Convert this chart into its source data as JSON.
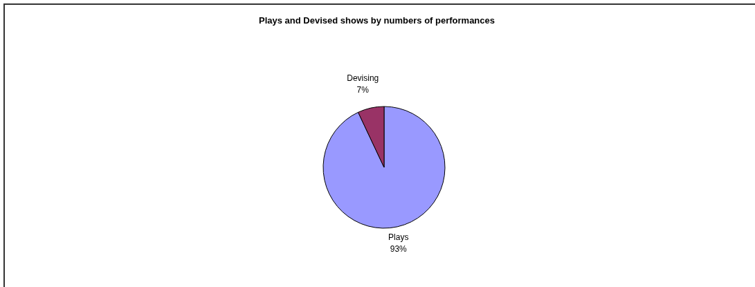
{
  "chart_data": {
    "type": "pie",
    "title": "Plays and Devised shows by numbers of performances",
    "categories": [
      "Plays",
      "Devising"
    ],
    "values": [
      93,
      7
    ],
    "colors": [
      "#9999ff",
      "#993366"
    ],
    "value_labels": [
      "93%",
      "7%"
    ],
    "legend": false
  }
}
